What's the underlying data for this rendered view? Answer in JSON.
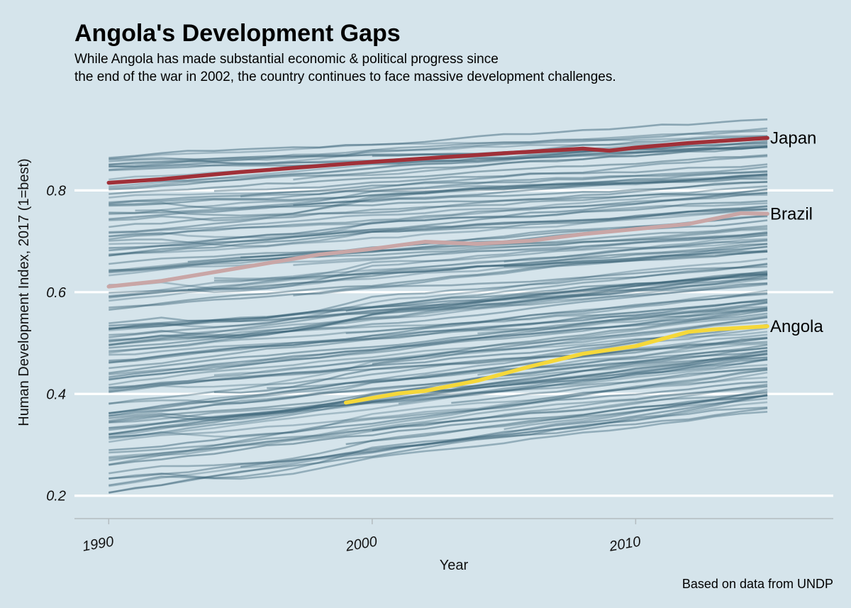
{
  "chart_data": {
    "type": "line",
    "title": "Angola's Development Gaps",
    "subtitle_lines": [
      "While Angola has made substantial economic & political progress since",
      "the end of the war in 2002, the country continues to face massive development challenges."
    ],
    "xlabel": "Year",
    "ylabel": "Human Development Index, 2017 (1=best)",
    "caption": "Based on data from UNDP",
    "x_ticks": [
      1990,
      2000,
      2010
    ],
    "x_tick_labels": [
      "1990",
      "2000",
      "2010"
    ],
    "y_ticks": [
      0.2,
      0.4,
      0.6,
      0.8
    ],
    "y_tick_labels": [
      "0.2",
      "0.4",
      "0.6",
      "0.8"
    ],
    "xlim": [
      1988.7,
      2017.5
    ],
    "ylim": [
      0.155,
      0.965
    ],
    "grid": "horizontal",
    "background_color": "#d5e4eb",
    "other_countries_color": "#3b6478",
    "highlighted_series": [
      {
        "name": "Japan",
        "color": "#a03038",
        "x": [
          1990,
          1992,
          1995,
          2000,
          2005,
          2008,
          2009,
          2010,
          2012,
          2015
        ],
        "values": [
          0.815,
          0.822,
          0.836,
          0.856,
          0.873,
          0.882,
          0.878,
          0.884,
          0.893,
          0.903
        ]
      },
      {
        "name": "Brazil",
        "color": "#c9a6a6",
        "x": [
          1990,
          1992,
          1995,
          1998,
          2000,
          2002,
          2004,
          2006,
          2008,
          2010,
          2012,
          2014,
          2015
        ],
        "values": [
          0.611,
          0.622,
          0.648,
          0.674,
          0.685,
          0.699,
          0.695,
          0.701,
          0.714,
          0.724,
          0.734,
          0.755,
          0.754
        ]
      },
      {
        "name": "Angola",
        "color": "#f5d83a",
        "x": [
          1999,
          2001,
          2002,
          2004,
          2006,
          2008,
          2010,
          2012,
          2013,
          2015
        ],
        "values": [
          0.383,
          0.401,
          0.406,
          0.426,
          0.454,
          0.479,
          0.494,
          0.522,
          0.527,
          0.533
        ]
      }
    ]
  }
}
